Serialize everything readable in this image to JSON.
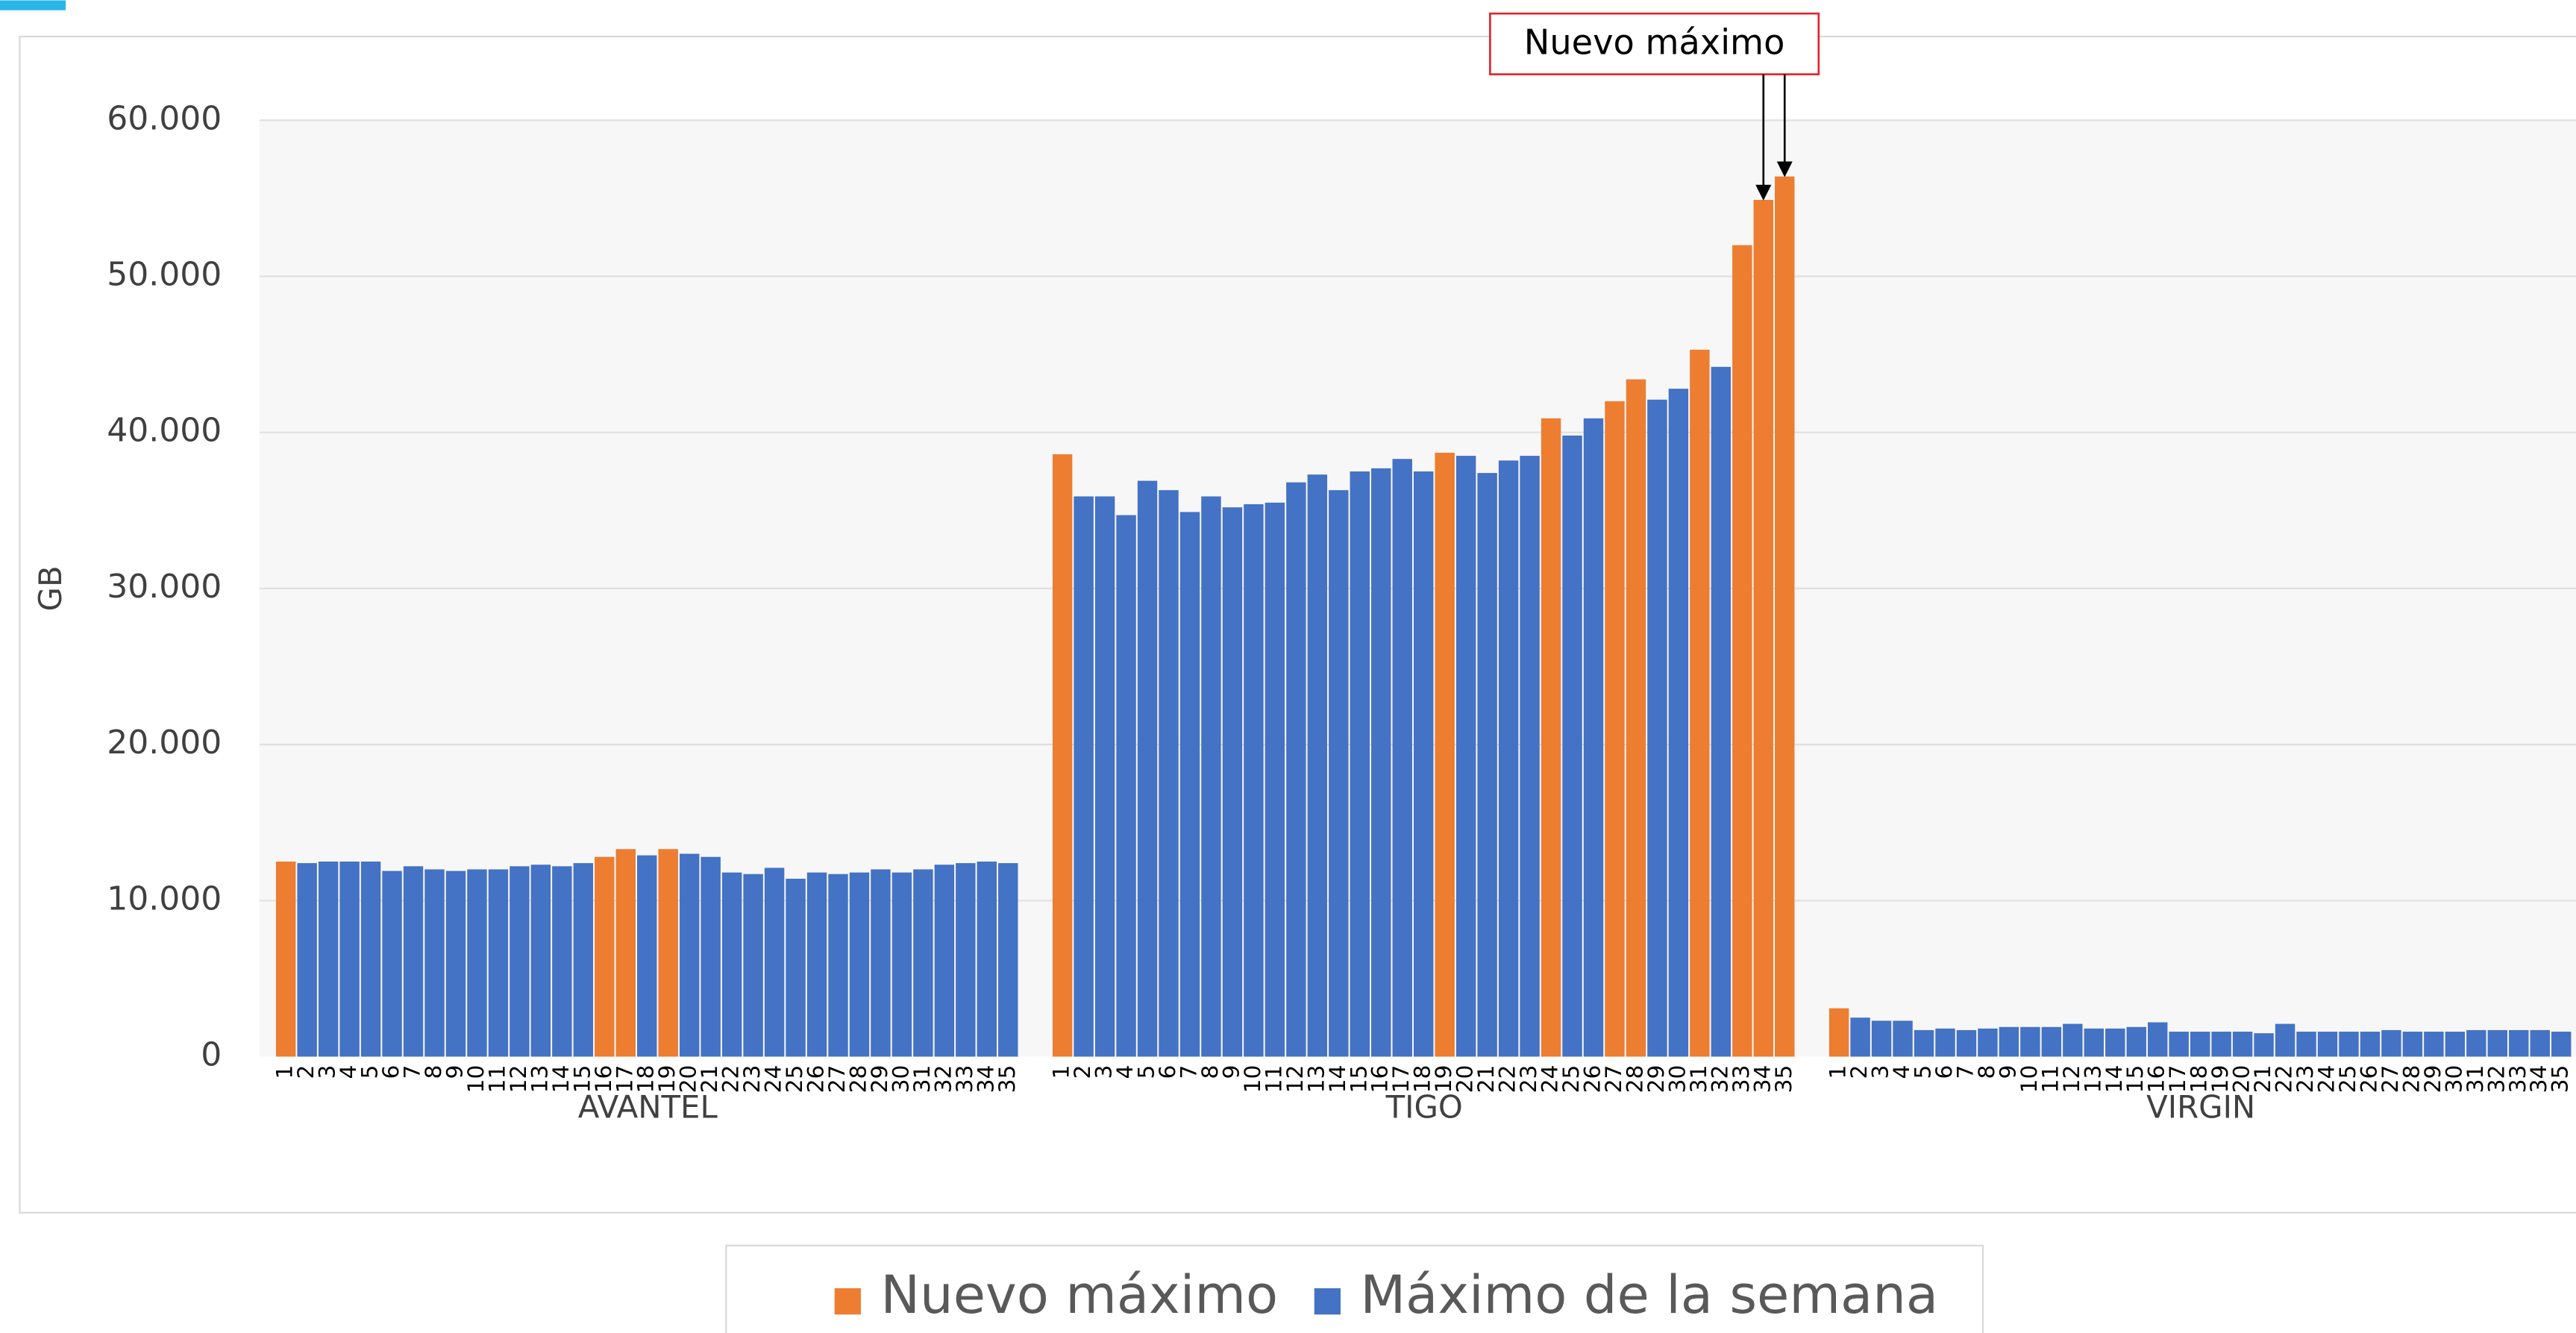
{
  "chart_data": {
    "type": "bar",
    "y_label": "GB",
    "groups": [
      "AVANTEL",
      "TIGO",
      "VIRGIN"
    ],
    "categories": [
      "1",
      "2",
      "3",
      "4",
      "5",
      "6",
      "7",
      "8",
      "9",
      "10",
      "11",
      "12",
      "13",
      "14",
      "15",
      "16",
      "17",
      "18",
      "19",
      "20",
      "21",
      "22",
      "23",
      "24",
      "25",
      "26",
      "27",
      "28",
      "29",
      "30",
      "31",
      "32",
      "33",
      "34",
      "35"
    ],
    "series": [
      {
        "name": "Nuevo máximo",
        "color": "#ed7d31",
        "values": [
          [
            12500,
            null,
            null,
            null,
            null,
            null,
            null,
            null,
            null,
            null,
            null,
            null,
            null,
            null,
            null,
            12800,
            13300,
            null,
            13300,
            null,
            null,
            null,
            null,
            null,
            null,
            null,
            null,
            null,
            null,
            null,
            null,
            null,
            null,
            null,
            null
          ],
          [
            38600,
            null,
            null,
            null,
            null,
            null,
            null,
            null,
            null,
            null,
            null,
            null,
            null,
            null,
            null,
            null,
            null,
            null,
            38700,
            null,
            null,
            null,
            null,
            40900,
            null,
            null,
            42000,
            43400,
            null,
            null,
            45300,
            null,
            52000,
            54900,
            56400
          ],
          [
            3100,
            null,
            null,
            null,
            null,
            null,
            null,
            null,
            null,
            null,
            null,
            null,
            null,
            null,
            null,
            null,
            null,
            null,
            null,
            null,
            null,
            null,
            null,
            null,
            null,
            null,
            null,
            null,
            null,
            null,
            null,
            null,
            null,
            null,
            null
          ]
        ]
      },
      {
        "name": "Máximo de la semana",
        "color": "#4472c4",
        "values": [
          [
            null,
            12400,
            12500,
            12500,
            12500,
            11900,
            12200,
            12000,
            11900,
            12000,
            12000,
            12200,
            12300,
            12200,
            12400,
            null,
            null,
            12900,
            null,
            13000,
            12800,
            11800,
            11700,
            12100,
            11400,
            11800,
            11700,
            11800,
            12000,
            11800,
            12000,
            12300,
            12400,
            12500,
            12400
          ],
          [
            null,
            35900,
            35900,
            34700,
            36900,
            36300,
            34900,
            35900,
            35200,
            35400,
            35500,
            36800,
            37300,
            36300,
            37500,
            37700,
            38300,
            37500,
            null,
            38500,
            37400,
            38200,
            38500,
            null,
            39800,
            40900,
            null,
            null,
            42100,
            42800,
            null,
            44200,
            null,
            null,
            null
          ],
          [
            null,
            2500,
            2300,
            2300,
            1700,
            1800,
            1700,
            1800,
            1900,
            1900,
            1900,
            2100,
            1800,
            1800,
            1900,
            2200,
            1600,
            1600,
            1600,
            1600,
            1500,
            2100,
            1600,
            1600,
            1600,
            1600,
            1700,
            1600,
            1600,
            1600,
            1700,
            1700,
            1700,
            1700,
            1600
          ]
        ]
      }
    ],
    "ylim": [
      0,
      60000
    ],
    "yticks": [
      0,
      {
        "value": 10000,
        "label": "10.000"
      },
      {
        "value": 20000,
        "label": "20.000"
      },
      {
        "value": 30000,
        "label": "30.000"
      },
      {
        "value": 40000,
        "label": "40.000"
      },
      {
        "value": 50000,
        "label": "50.000"
      },
      {
        "value": 60000,
        "label": "60.000"
      }
    ],
    "grid": true,
    "annotation": "Nuevo máximo"
  }
}
